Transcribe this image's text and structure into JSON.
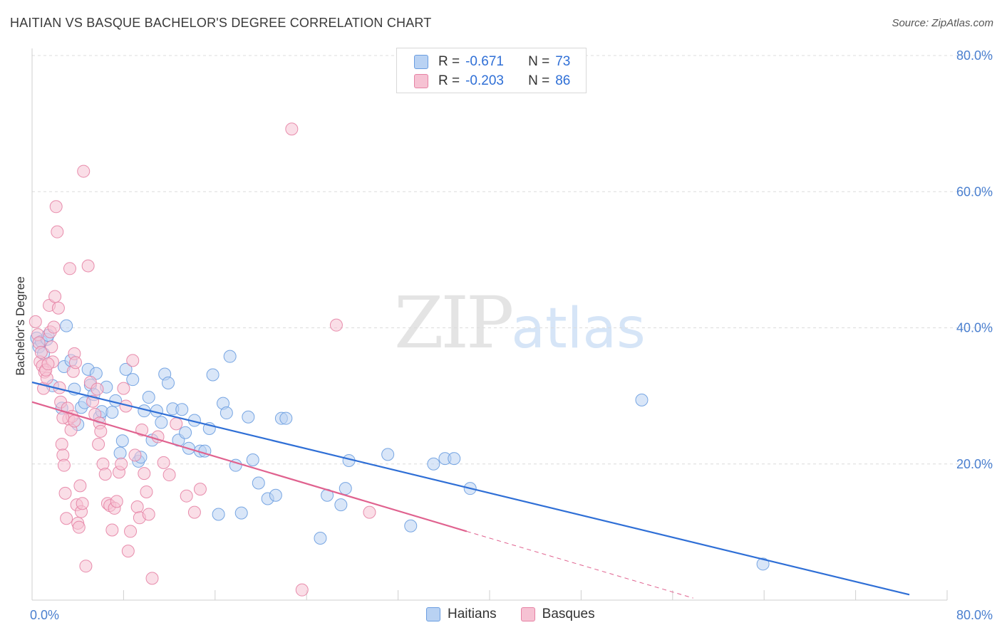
{
  "title": "HAITIAN VS BASQUE BACHELOR'S DEGREE CORRELATION CHART",
  "source": "Source: ZipAtlas.com",
  "watermark": {
    "zip": "ZIP",
    "atlas": "atlas"
  },
  "colors": {
    "blue": "#6a9de0",
    "blue_fill": "#b9d2f3",
    "pink": "#e682a4",
    "pink_fill": "#f6c2d3",
    "blue_line": "#2f6fd6",
    "pink_line": "#e0628f"
  },
  "legend": {
    "rows": [
      {
        "r_label": "R =",
        "r_value": "-0.671",
        "n_label": "N =",
        "n_value": "73"
      },
      {
        "r_label": "R =",
        "r_value": "-0.203",
        "n_label": "N =",
        "n_value": "86"
      }
    ]
  },
  "bottom_legend": [
    "Haitians",
    "Basques"
  ],
  "chart_data": {
    "type": "scatter",
    "title": "HAITIAN VS BASQUE BACHELOR'S DEGREE CORRELATION CHART",
    "xlabel": "",
    "ylabel": "Bachelor's Degree",
    "xlim": [
      0,
      80
    ],
    "ylim": [
      0,
      80
    ],
    "x_tick_labels": [
      "0.0%",
      "80.0%"
    ],
    "y_tick_labels": [
      "80.0%",
      "60.0%",
      "40.0%",
      "20.0%"
    ],
    "y_ticks": [
      80,
      60,
      40,
      20
    ],
    "series": [
      {
        "name": "Haitians",
        "trend": {
          "x0": 0,
          "y0": 32.0,
          "x1": 76.7,
          "y1": 0.8
        },
        "points": [
          [
            0.4,
            38.5
          ],
          [
            0.6,
            37.2
          ],
          [
            0.8,
            38.0
          ],
          [
            1.0,
            36.2
          ],
          [
            1.3,
            38.3
          ],
          [
            1.4,
            38.9
          ],
          [
            1.8,
            31.5
          ],
          [
            2.6,
            28.2
          ],
          [
            2.8,
            34.3
          ],
          [
            3.0,
            40.3
          ],
          [
            3.4,
            35.2
          ],
          [
            3.7,
            31.0
          ],
          [
            4.0,
            25.8
          ],
          [
            4.3,
            28.3
          ],
          [
            4.6,
            29.0
          ],
          [
            4.9,
            33.9
          ],
          [
            5.1,
            31.6
          ],
          [
            5.4,
            30.2
          ],
          [
            5.6,
            33.3
          ],
          [
            5.9,
            26.9
          ],
          [
            6.1,
            27.7
          ],
          [
            6.5,
            31.3
          ],
          [
            7.0,
            27.6
          ],
          [
            7.3,
            29.3
          ],
          [
            7.7,
            21.6
          ],
          [
            7.9,
            23.4
          ],
          [
            8.2,
            33.9
          ],
          [
            8.8,
            32.4
          ],
          [
            9.3,
            20.4
          ],
          [
            9.5,
            21.0
          ],
          [
            9.8,
            27.8
          ],
          [
            10.2,
            29.8
          ],
          [
            10.5,
            23.5
          ],
          [
            10.9,
            27.8
          ],
          [
            11.3,
            26.1
          ],
          [
            11.6,
            33.2
          ],
          [
            11.9,
            31.9
          ],
          [
            12.3,
            28.1
          ],
          [
            12.8,
            23.5
          ],
          [
            13.1,
            28.0
          ],
          [
            13.4,
            24.6
          ],
          [
            13.7,
            22.3
          ],
          [
            14.2,
            26.4
          ],
          [
            14.7,
            21.9
          ],
          [
            15.1,
            21.9
          ],
          [
            15.5,
            25.2
          ],
          [
            15.8,
            33.1
          ],
          [
            16.3,
            12.6
          ],
          [
            16.7,
            28.9
          ],
          [
            17.0,
            27.5
          ],
          [
            17.3,
            35.8
          ],
          [
            17.8,
            19.8
          ],
          [
            18.3,
            12.8
          ],
          [
            18.9,
            26.9
          ],
          [
            19.3,
            20.6
          ],
          [
            19.8,
            17.2
          ],
          [
            20.6,
            14.9
          ],
          [
            21.3,
            15.4
          ],
          [
            21.8,
            26.7
          ],
          [
            22.2,
            26.7
          ],
          [
            25.2,
            9.1
          ],
          [
            25.8,
            15.4
          ],
          [
            27.0,
            14.0
          ],
          [
            27.4,
            16.4
          ],
          [
            27.7,
            20.5
          ],
          [
            31.1,
            21.4
          ],
          [
            33.1,
            10.9
          ],
          [
            35.1,
            20.0
          ],
          [
            36.1,
            20.8
          ],
          [
            36.9,
            20.8
          ],
          [
            38.3,
            16.4
          ],
          [
            53.3,
            29.4
          ],
          [
            63.9,
            5.3
          ]
        ]
      },
      {
        "name": "Basques",
        "trend": {
          "x0": 0,
          "y0": 29.1,
          "x1": 38.0,
          "y1": 10.1
        },
        "trend_dashed": {
          "x0": 38.0,
          "y0": 10.1,
          "x1": 57.8,
          "y1": 0.3
        },
        "points": [
          [
            0.3,
            40.9
          ],
          [
            0.5,
            39.0
          ],
          [
            0.6,
            37.8
          ],
          [
            0.7,
            35.0
          ],
          [
            0.8,
            36.4
          ],
          [
            0.9,
            34.4
          ],
          [
            1.0,
            31.1
          ],
          [
            1.1,
            33.5
          ],
          [
            1.3,
            32.6
          ],
          [
            1.5,
            43.3
          ],
          [
            1.6,
            39.4
          ],
          [
            1.7,
            37.2
          ],
          [
            1.8,
            35.0
          ],
          [
            1.9,
            40.1
          ],
          [
            2.0,
            44.6
          ],
          [
            2.1,
            57.8
          ],
          [
            2.2,
            54.1
          ],
          [
            2.3,
            42.9
          ],
          [
            2.4,
            31.2
          ],
          [
            2.5,
            29.1
          ],
          [
            2.6,
            22.9
          ],
          [
            2.7,
            21.3
          ],
          [
            2.8,
            19.8
          ],
          [
            2.9,
            15.7
          ],
          [
            3.0,
            12.0
          ],
          [
            3.1,
            28.2
          ],
          [
            3.2,
            26.6
          ],
          [
            3.3,
            48.7
          ],
          [
            3.4,
            25.0
          ],
          [
            3.5,
            27.0
          ],
          [
            3.6,
            33.6
          ],
          [
            3.7,
            36.2
          ],
          [
            3.8,
            34.9
          ],
          [
            3.9,
            14.0
          ],
          [
            4.0,
            11.3
          ],
          [
            4.1,
            10.7
          ],
          [
            4.2,
            16.8
          ],
          [
            4.3,
            13.0
          ],
          [
            4.5,
            63.0
          ],
          [
            4.7,
            5.0
          ],
          [
            4.9,
            49.1
          ],
          [
            5.1,
            32.0
          ],
          [
            5.3,
            29.2
          ],
          [
            5.5,
            27.3
          ],
          [
            5.7,
            31.0
          ],
          [
            5.9,
            26.0
          ],
          [
            6.0,
            24.8
          ],
          [
            6.2,
            20.0
          ],
          [
            6.4,
            18.5
          ],
          [
            6.6,
            14.2
          ],
          [
            6.8,
            13.9
          ],
          [
            7.0,
            10.3
          ],
          [
            7.2,
            13.5
          ],
          [
            7.4,
            14.5
          ],
          [
            7.6,
            18.8
          ],
          [
            7.8,
            20.0
          ],
          [
            8.0,
            31.1
          ],
          [
            8.2,
            28.5
          ],
          [
            8.4,
            7.2
          ],
          [
            8.6,
            10.1
          ],
          [
            8.8,
            35.2
          ],
          [
            9.0,
            21.3
          ],
          [
            9.2,
            13.7
          ],
          [
            9.4,
            12.1
          ],
          [
            9.6,
            25.0
          ],
          [
            9.8,
            18.6
          ],
          [
            10.0,
            15.9
          ],
          [
            10.2,
            12.6
          ],
          [
            10.5,
            3.2
          ],
          [
            11.0,
            24.0
          ],
          [
            11.5,
            20.2
          ],
          [
            12.0,
            18.4
          ],
          [
            12.6,
            25.9
          ],
          [
            13.5,
            15.3
          ],
          [
            14.2,
            12.9
          ],
          [
            14.7,
            16.3
          ],
          [
            22.7,
            69.2
          ],
          [
            23.6,
            1.5
          ],
          [
            26.6,
            40.4
          ],
          [
            29.5,
            12.9
          ],
          [
            1.2,
            33.8
          ],
          [
            1.4,
            34.7
          ],
          [
            2.7,
            26.8
          ],
          [
            3.7,
            26.3
          ],
          [
            4.4,
            14.2
          ],
          [
            5.8,
            22.9
          ]
        ]
      }
    ]
  }
}
